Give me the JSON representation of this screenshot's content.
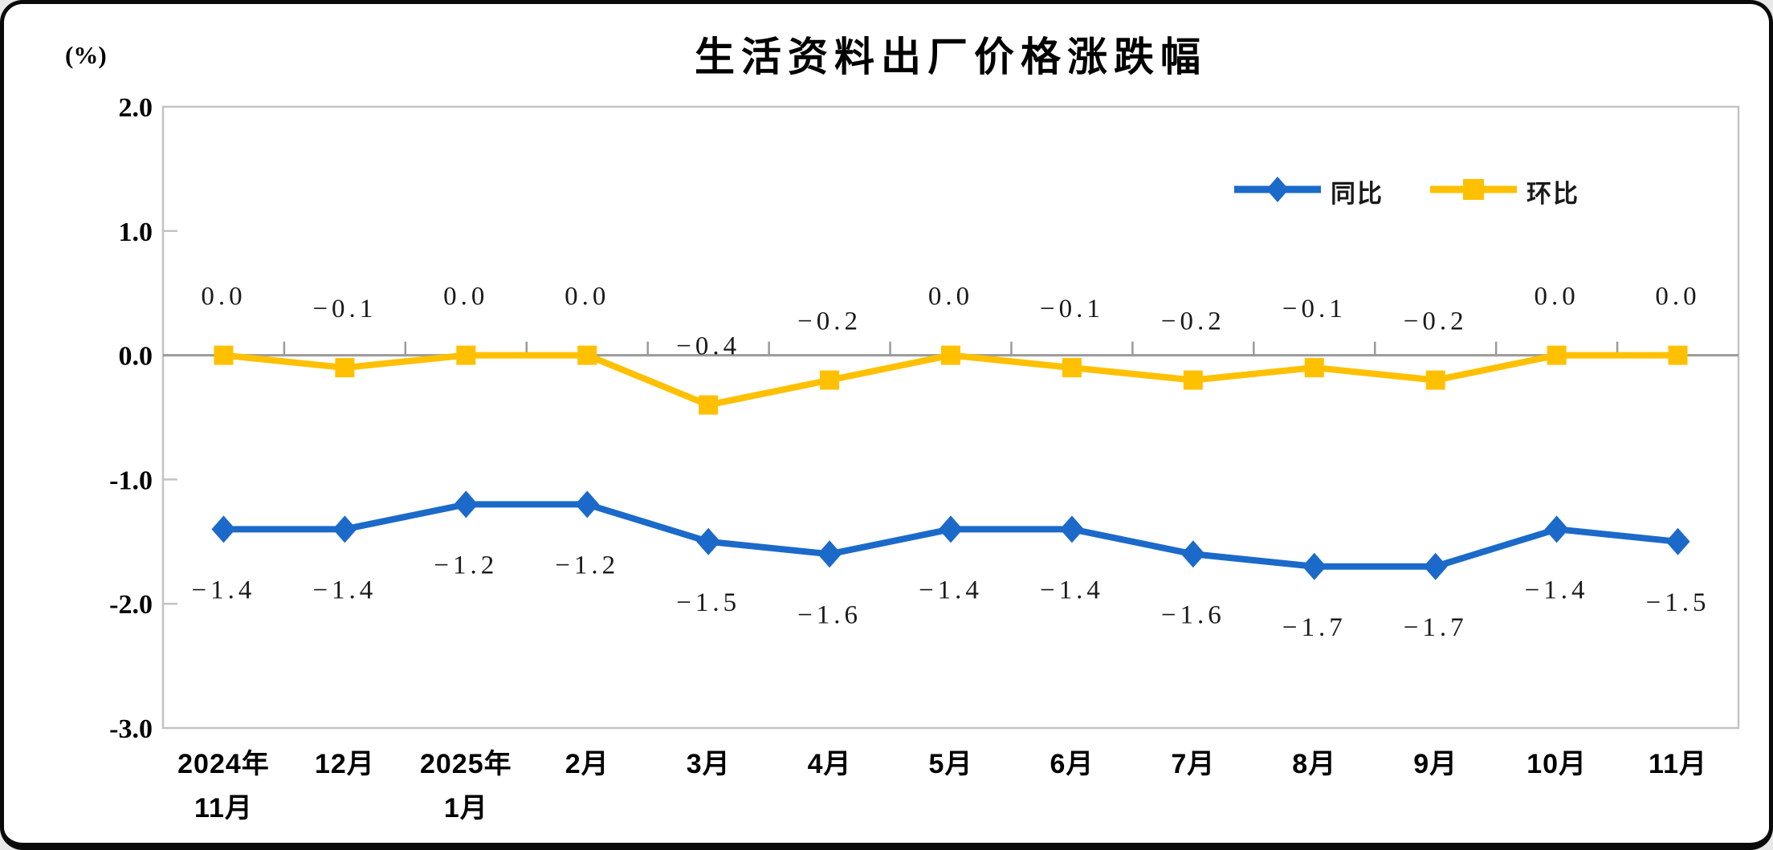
{
  "title": "生活资料出厂价格涨跌幅",
  "chart_data": {
    "type": "line",
    "title": "生活资料出厂价格涨跌幅",
    "unit_label": "(%)",
    "categories": [
      [
        "2024年",
        "11月"
      ],
      [
        "12月"
      ],
      [
        "2025年",
        "1月"
      ],
      [
        "2月"
      ],
      [
        "3月"
      ],
      [
        "4月"
      ],
      [
        "5月"
      ],
      [
        "6月"
      ],
      [
        "7月"
      ],
      [
        "8月"
      ],
      [
        "9月"
      ],
      [
        "10月"
      ],
      [
        "11月"
      ]
    ],
    "series": [
      {
        "id": "yoy",
        "name": "同比",
        "color": "#1B6AC9",
        "marker": "diamond",
        "label_position": "below",
        "values": [
          -1.4,
          -1.4,
          -1.2,
          -1.2,
          -1.5,
          -1.6,
          -1.4,
          -1.4,
          -1.6,
          -1.7,
          -1.7,
          -1.4,
          -1.5
        ]
      },
      {
        "id": "mom",
        "name": "环比",
        "color": "#FFC000",
        "marker": "square",
        "label_position": "above",
        "values": [
          0.0,
          -0.1,
          0.0,
          0.0,
          -0.4,
          -0.2,
          0.0,
          -0.1,
          -0.2,
          -0.1,
          -0.2,
          0.0,
          0.0
        ]
      }
    ],
    "ylim": [
      -3.0,
      2.0
    ],
    "yticks": [
      2.0,
      1.0,
      0.0,
      -1.0,
      -2.0,
      -3.0
    ],
    "ytick_labels": [
      "2.0",
      "1.0",
      "0.0",
      "-1.0",
      "-2.0",
      "-3.0"
    ],
    "grid": "zero-line-only",
    "legend_position": "upper-right",
    "axis_color": "#C3C3C3",
    "zero_line_color": "#9A9A9A",
    "tick_color": "#9A9A9A",
    "data_label_color": "#1A1A1A"
  }
}
